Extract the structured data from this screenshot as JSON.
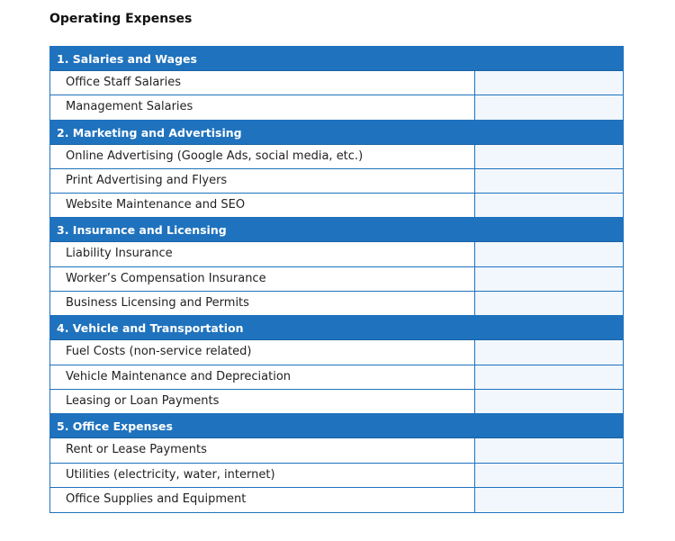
{
  "title": "Operating Expenses",
  "sections": [
    {
      "heading": "1. Salaries and Wages",
      "items": [
        "Office Staff Salaries",
        "Management Salaries"
      ]
    },
    {
      "heading": "2. Marketing and Advertising",
      "items": [
        "Online Advertising (Google Ads, social media, etc.)",
        "Print Advertising and Flyers",
        "Website Maintenance and SEO"
      ]
    },
    {
      "heading": "3. Insurance and Licensing",
      "items": [
        "Liability Insurance",
        "Worker’s Compensation Insurance",
        "Business Licensing and Permits"
      ]
    },
    {
      "heading": "4. Vehicle and Transportation",
      "items": [
        "Fuel Costs (non-service related)",
        "Vehicle Maintenance and Depreciation",
        "Leasing or Loan Payments"
      ]
    },
    {
      "heading": "5. Office Expenses",
      "items": [
        "Rent or Lease Payments",
        "Utilities (electricity, water, internet)",
        "Office Supplies and Equipment"
      ]
    }
  ]
}
